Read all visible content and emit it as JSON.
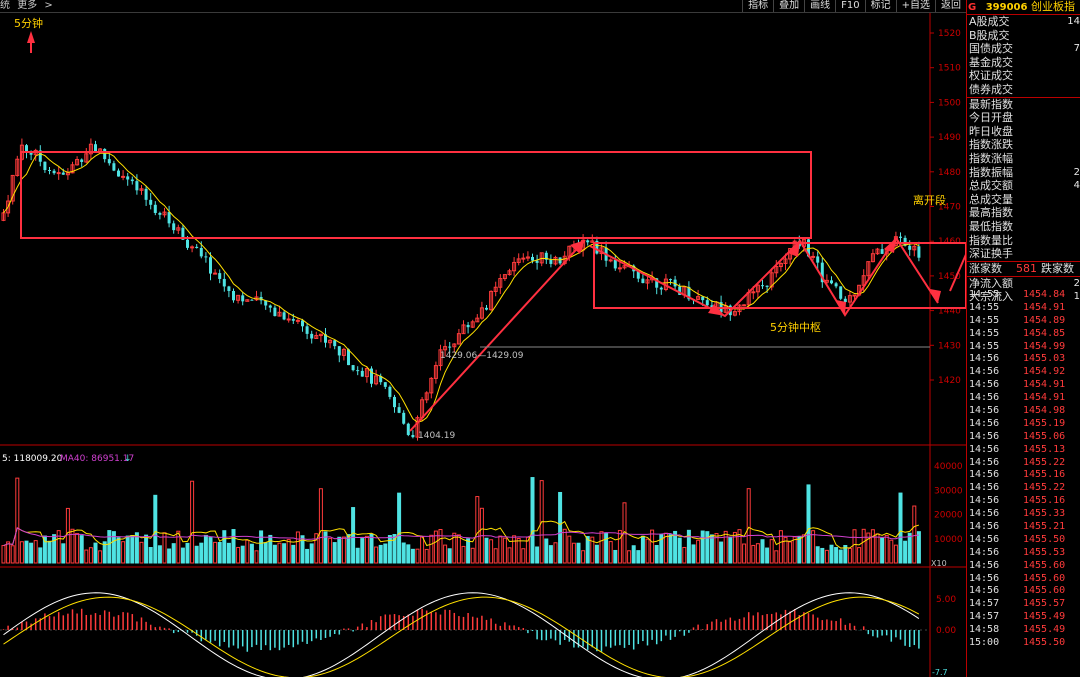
{
  "toolbar": {
    "left_items": [
      "统",
      "更多",
      ">"
    ],
    "buttons": [
      "指标",
      "叠加",
      "画线",
      "F10",
      "标记",
      "+自选",
      "返回"
    ]
  },
  "chart": {
    "timeframe_label": "5分钟",
    "breakout_label": "离开段",
    "pivot_label": "5分钟中枢",
    "low_label": "1404.19",
    "level_label": "1429.06—1429.09",
    "price_axis": [
      "1520",
      "1510",
      "1500",
      "1490",
      "1480",
      "1470",
      "1460",
      "1450",
      "1440",
      "1430",
      "1420"
    ],
    "volume_legend": {
      "vol": "5: 118009.20",
      "ma40": "MA40: 86951.17",
      "arrow": "↓"
    },
    "volume_axis": [
      "40000",
      "30000",
      "20000",
      "10000"
    ],
    "volume_unit": "X10",
    "macd_axis": [
      "5.00",
      "0.00"
    ],
    "macd_value": "-7.7",
    "colors": {
      "up": "#ff3b3b",
      "down": "#4fe3e3",
      "ma": "#ffe000",
      "ma40": "#d040d0",
      "annotation": "#ff3040",
      "text_yellow": "#ffd000"
    }
  },
  "quote": {
    "badge": "G",
    "code": "399006",
    "name": "创业板指",
    "market_rows": [
      {
        "label": "A股成交",
        "value": "14"
      },
      {
        "label": "B股成交",
        "value": ""
      },
      {
        "label": "国债成交",
        "value": "7"
      },
      {
        "label": "基金成交",
        "value": ""
      },
      {
        "label": "权证成交",
        "value": ""
      },
      {
        "label": "债券成交",
        "value": ""
      }
    ],
    "stat_rows": [
      {
        "label": "最新指数",
        "value": ""
      },
      {
        "label": "今日开盘",
        "value": ""
      },
      {
        "label": "昨日收盘",
        "value": ""
      },
      {
        "label": "指数涨跌",
        "value": ""
      },
      {
        "label": "指数涨幅",
        "value": ""
      },
      {
        "label": "指数振幅",
        "value": "2"
      },
      {
        "label": "总成交额",
        "value": "4"
      },
      {
        "label": "总成交量",
        "value": ""
      },
      {
        "label": "最高指数",
        "value": ""
      },
      {
        "label": "最低指数",
        "value": ""
      },
      {
        "label": "指数量比",
        "value": ""
      },
      {
        "label": "深证换手",
        "value": ""
      }
    ],
    "rise_label": "涨家数",
    "rise_value": "581",
    "fall_label": "跌家数",
    "flow_rows": [
      {
        "label": "净流入额",
        "value": "2"
      },
      {
        "label": "大宗流入",
        "value": "1"
      }
    ],
    "trades": [
      {
        "time": "14:55",
        "price": "1454.84"
      },
      {
        "time": "14:55",
        "price": "1454.91"
      },
      {
        "time": "14:55",
        "price": "1454.89"
      },
      {
        "time": "14:55",
        "price": "1454.85"
      },
      {
        "time": "14:55",
        "price": "1454.99"
      },
      {
        "time": "14:56",
        "price": "1455.03"
      },
      {
        "time": "14:56",
        "price": "1454.92"
      },
      {
        "time": "14:56",
        "price": "1454.91"
      },
      {
        "time": "14:56",
        "price": "1454.91"
      },
      {
        "time": "14:56",
        "price": "1454.98"
      },
      {
        "time": "14:56",
        "price": "1455.19"
      },
      {
        "time": "14:56",
        "price": "1455.06"
      },
      {
        "time": "14:56",
        "price": "1455.13"
      },
      {
        "time": "14:56",
        "price": "1455.22"
      },
      {
        "time": "14:56",
        "price": "1455.16"
      },
      {
        "time": "14:56",
        "price": "1455.22"
      },
      {
        "time": "14:56",
        "price": "1455.16"
      },
      {
        "time": "14:56",
        "price": "1455.33"
      },
      {
        "time": "14:56",
        "price": "1455.21"
      },
      {
        "time": "14:56",
        "price": "1455.50"
      },
      {
        "time": "14:56",
        "price": "1455.53"
      },
      {
        "time": "14:56",
        "price": "1455.60"
      },
      {
        "time": "14:56",
        "price": "1455.60"
      },
      {
        "time": "14:56",
        "price": "1455.60"
      },
      {
        "time": "14:57",
        "price": "1455.57"
      },
      {
        "time": "14:57",
        "price": "1455.49"
      },
      {
        "time": "14:58",
        "price": "1455.49"
      },
      {
        "time": "15:00",
        "price": "1455.50"
      }
    ]
  }
}
